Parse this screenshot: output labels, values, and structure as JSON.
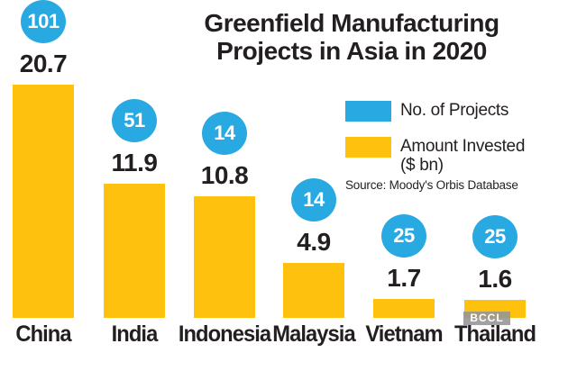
{
  "title": {
    "line1": "Greenfield Manufacturing",
    "line2": "Projects in Asia in 2020"
  },
  "legend": {
    "projects": {
      "label": "No. of Projects",
      "color": "#29a9e1"
    },
    "amount": {
      "label_line1": "Amount Invested",
      "label_line2": "($ bn)",
      "color": "#fec10d"
    }
  },
  "source": "Source: Moody's Orbis Database",
  "watermark": "BCCL",
  "colors": {
    "projects_badge": "#29a9e1",
    "amount_bar": "#fec10d",
    "text": "#231f20",
    "badge_text": "#ffffff"
  },
  "chart_data": {
    "type": "bar",
    "title": "Greenfield Manufacturing Projects in Asia in 2020",
    "categories": [
      "China",
      "India",
      "Indonesia",
      "Malaysia",
      "Vietnam",
      "Thailand"
    ],
    "series": [
      {
        "name": "No. of Projects",
        "values": [
          101,
          51,
          14,
          14,
          25,
          25
        ],
        "color": "#29a9e1",
        "style": "circle-badge"
      },
      {
        "name": "Amount Invested ($ bn)",
        "values": [
          20.7,
          11.9,
          10.8,
          4.9,
          1.7,
          1.6
        ],
        "color": "#fec10d",
        "style": "bar"
      }
    ],
    "xlabel": "",
    "ylabel": "Amount Invested ($ bn)",
    "ylim": [
      0,
      20.7
    ],
    "grid": false,
    "value_labels": true,
    "legend_position": "right",
    "source": "Source: Moody's Orbis Database"
  }
}
